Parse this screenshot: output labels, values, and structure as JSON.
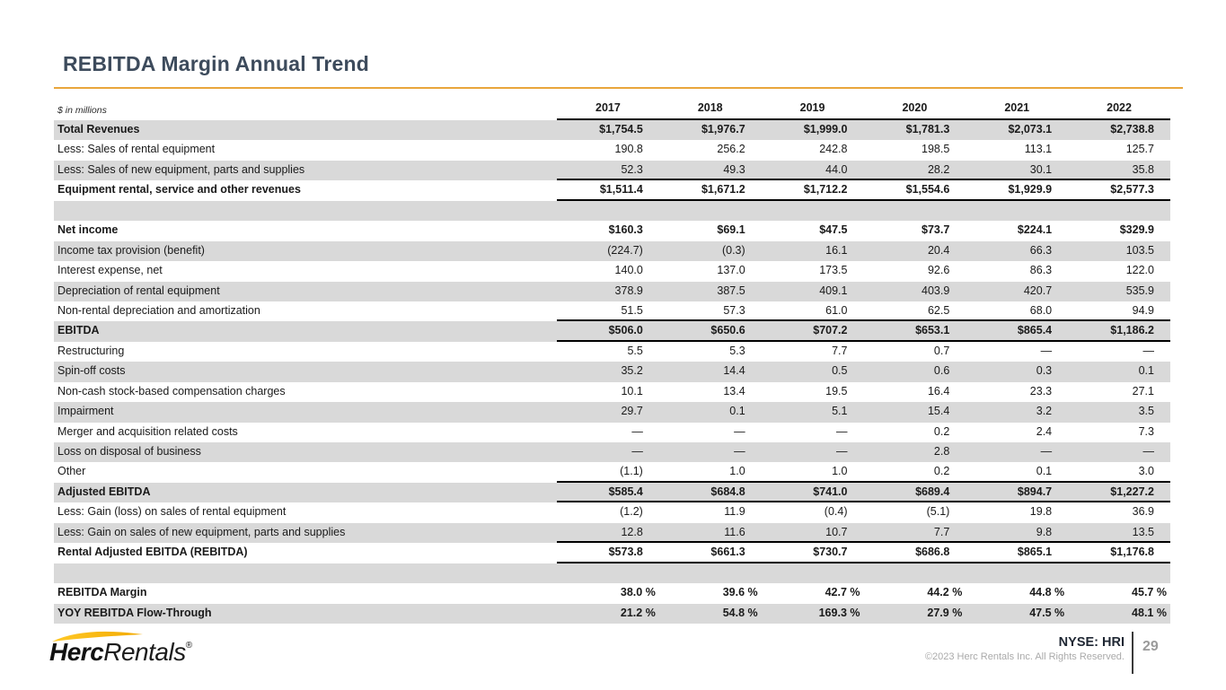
{
  "slide": {
    "title": "REBITDA Margin Annual Trend",
    "accent_color": "#E9A63C",
    "band_color": "#D9D9D9",
    "title_color": "#3D4B5C"
  },
  "table": {
    "units_note": "$ in millions",
    "years": [
      "2017",
      "2018",
      "2019",
      "2020",
      "2021",
      "2022"
    ],
    "rows": [
      {
        "label": "Total Revenues",
        "values": [
          "$1,754.5",
          "$1,976.7",
          "$1,999.0",
          "$1,781.3",
          "$2,073.1",
          "$2,738.8"
        ],
        "bold": true,
        "gray": true
      },
      {
        "label": "Less: Sales of rental equipment",
        "values": [
          "190.8",
          "256.2",
          "242.8",
          "198.5",
          "113.1",
          "125.7"
        ]
      },
      {
        "label": "Less: Sales of new equipment, parts and supplies",
        "values": [
          "52.3",
          "49.3",
          "44.0",
          "28.2",
          "30.1",
          "35.8"
        ],
        "gray": true,
        "rule": true
      },
      {
        "label": "Equipment rental, service and other revenues",
        "values": [
          "$1,511.4",
          "$1,671.2",
          "$1,712.2",
          "$1,554.6",
          "$1,929.9",
          "$2,577.3"
        ],
        "bold": true,
        "rule": true
      },
      {
        "spacer": true,
        "gray": true
      },
      {
        "label": "Net income",
        "values": [
          "$160.3",
          "$69.1",
          "$47.5",
          "$73.7",
          "$224.1",
          "$329.9"
        ],
        "bold": true
      },
      {
        "label": "Income tax provision (benefit)",
        "values": [
          "(224.7)",
          "(0.3)",
          "16.1",
          "20.4",
          "66.3",
          "103.5"
        ],
        "gray": true
      },
      {
        "label": "Interest expense, net",
        "values": [
          "140.0",
          "137.0",
          "173.5",
          "92.6",
          "86.3",
          "122.0"
        ]
      },
      {
        "label": "Depreciation of rental equipment",
        "values": [
          "378.9",
          "387.5",
          "409.1",
          "403.9",
          "420.7",
          "535.9"
        ],
        "gray": true
      },
      {
        "label": "Non-rental depreciation and amortization",
        "values": [
          "51.5",
          "57.3",
          "61.0",
          "62.5",
          "68.0",
          "94.9"
        ],
        "rule": true
      },
      {
        "label": "EBITDA",
        "values": [
          "$506.0",
          "$650.6",
          "$707.2",
          "$653.1",
          "$865.4",
          "$1,186.2"
        ],
        "bold": true,
        "gray": true,
        "rule": true
      },
      {
        "label": "Restructuring",
        "values": [
          "5.5",
          "5.3",
          "7.7",
          "0.7",
          "—",
          "—"
        ]
      },
      {
        "label": "Spin-off costs",
        "values": [
          "35.2",
          "14.4",
          "0.5",
          "0.6",
          "0.3",
          "0.1"
        ],
        "gray": true
      },
      {
        "label": "Non-cash stock-based compensation charges",
        "values": [
          "10.1",
          "13.4",
          "19.5",
          "16.4",
          "23.3",
          "27.1"
        ]
      },
      {
        "label": "Impairment",
        "values": [
          "29.7",
          "0.1",
          "5.1",
          "15.4",
          "3.2",
          "3.5"
        ],
        "gray": true
      },
      {
        "label": "Merger and acquisition related costs",
        "values": [
          "—",
          "—",
          "—",
          "0.2",
          "2.4",
          "7.3"
        ]
      },
      {
        "label": "Loss on disposal of business",
        "values": [
          "—",
          "—",
          "—",
          "2.8",
          "—",
          "—"
        ],
        "gray": true
      },
      {
        "label": "Other",
        "values": [
          "(1.1)",
          "1.0",
          "1.0",
          "0.2",
          "0.1",
          "3.0"
        ],
        "rule": true
      },
      {
        "label": "Adjusted EBITDA",
        "values": [
          "$585.4",
          "$684.8",
          "$741.0",
          "$689.4",
          "$894.7",
          "$1,227.2"
        ],
        "bold": true,
        "gray": true,
        "rule": true
      },
      {
        "label": "Less: Gain (loss) on sales of rental equipment",
        "values": [
          "(1.2)",
          "11.9",
          "(0.4)",
          "(5.1)",
          "19.8",
          "36.9"
        ]
      },
      {
        "label": "Less: Gain on sales of new equipment, parts and supplies",
        "values": [
          "12.8",
          "11.6",
          "10.7",
          "7.7",
          "9.8",
          "13.5"
        ],
        "gray": true,
        "rule": true
      },
      {
        "label": "Rental Adjusted EBITDA (REBITDA)",
        "values": [
          "$573.8",
          "$661.3",
          "$730.7",
          "$686.8",
          "$865.1",
          "$1,176.8"
        ],
        "bold": true,
        "rule": true
      },
      {
        "spacer": true,
        "gray": true
      },
      {
        "label": "REBITDA Margin",
        "values": [
          "38.0 %",
          "39.6 %",
          "42.7 %",
          "44.2 %",
          "44.8 %",
          "45.7 %"
        ],
        "bold": true,
        "pct": true
      },
      {
        "label": "YOY REBITDA Flow-Through",
        "values": [
          "21.2 %",
          "54.8 %",
          "169.3 %",
          "27.9 %",
          "47.5 %",
          "48.1 %"
        ],
        "bold": true,
        "gray": true,
        "pct": true
      }
    ]
  },
  "footer": {
    "logo_bold": "Herc",
    "logo_light": "Rentals",
    "logo_registered": "®",
    "ticker": "NYSE: HRI",
    "copyright": "©2023 Herc Rentals Inc.  All Rights Reserved.",
    "page_number": "29"
  }
}
